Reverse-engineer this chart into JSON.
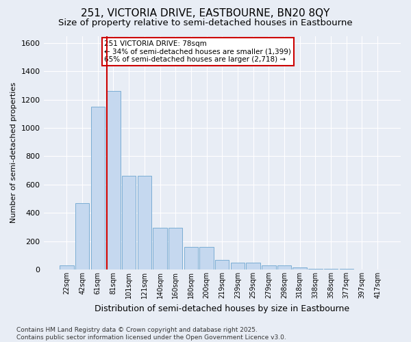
{
  "title": "251, VICTORIA DRIVE, EASTBOURNE, BN20 8QY",
  "subtitle": "Size of property relative to semi-detached houses in Eastbourne",
  "xlabel": "Distribution of semi-detached houses by size in Eastbourne",
  "ylabel": "Number of semi-detached properties",
  "categories": [
    "22sqm",
    "42sqm",
    "61sqm",
    "81sqm",
    "101sqm",
    "121sqm",
    "140sqm",
    "160sqm",
    "180sqm",
    "200sqm",
    "219sqm",
    "239sqm",
    "259sqm",
    "279sqm",
    "298sqm",
    "318sqm",
    "338sqm",
    "358sqm",
    "377sqm",
    "397sqm",
    "417sqm"
  ],
  "values": [
    30,
    470,
    1150,
    1260,
    660,
    660,
    295,
    295,
    160,
    160,
    70,
    50,
    50,
    30,
    30,
    15,
    5,
    5,
    3,
    2,
    1
  ],
  "bar_color": "#c5d8ef",
  "bar_edge_color": "#7badd4",
  "vline_color": "#cc0000",
  "annotation_text": "251 VICTORIA DRIVE: 78sqm\n← 34% of semi-detached houses are smaller (1,399)\n65% of semi-detached houses are larger (2,718) →",
  "annotation_box_color": "#ffffff",
  "annotation_box_edge_color": "#cc0000",
  "ylim": [
    0,
    1650
  ],
  "yticks": [
    0,
    200,
    400,
    600,
    800,
    1000,
    1200,
    1400,
    1600
  ],
  "background_color": "#e8edf5",
  "plot_bg_color": "#e8edf5",
  "footer": "Contains HM Land Registry data © Crown copyright and database right 2025.\nContains public sector information licensed under the Open Government Licence v3.0.",
  "title_fontsize": 11,
  "subtitle_fontsize": 9.5,
  "xlabel_fontsize": 9,
  "ylabel_fontsize": 8,
  "footer_fontsize": 6.5
}
